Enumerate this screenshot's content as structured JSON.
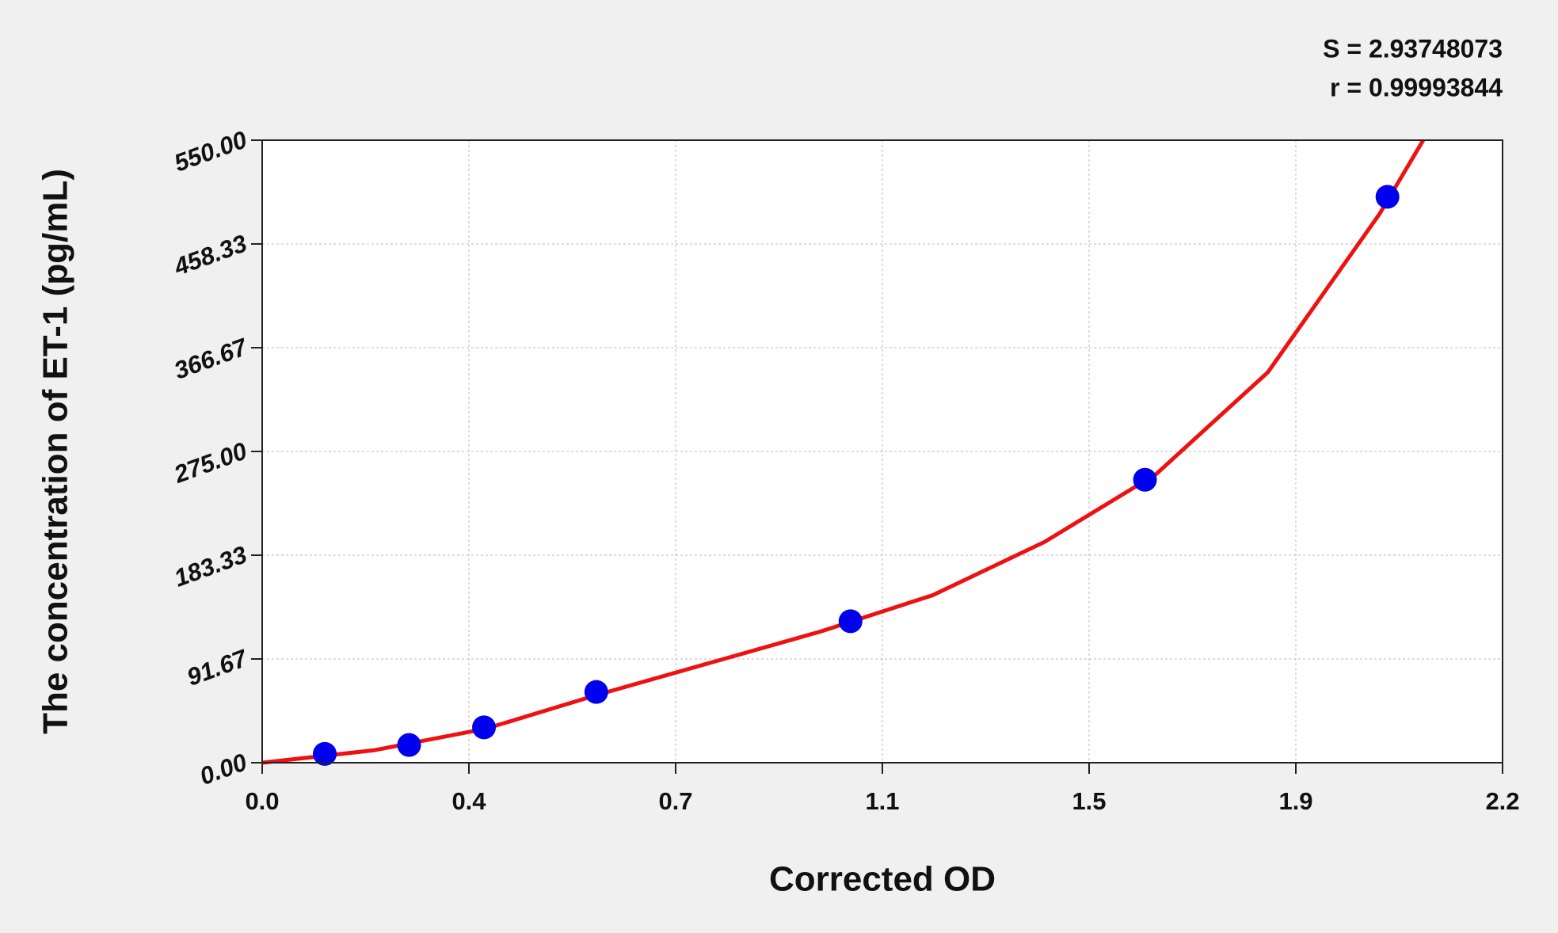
{
  "chart_data": {
    "type": "scatter",
    "x_label": "Corrected OD",
    "y_label": "The concentration of ET-1 (pg/mL)",
    "annotations": [
      "S = 2.93748073",
      "r = 0.99993844"
    ],
    "xlim": [
      0,
      2.22
    ],
    "xticks": [
      {
        "value": 0,
        "label": "0.0"
      },
      {
        "value": 0.37,
        "label": "0.4"
      },
      {
        "value": 0.74,
        "label": "0.7"
      },
      {
        "value": 1.11,
        "label": "1.1"
      },
      {
        "value": 1.48,
        "label": "1.5"
      },
      {
        "value": 1.85,
        "label": "1.9"
      },
      {
        "value": 2.22,
        "label": "2.2"
      }
    ],
    "ylim": [
      0,
      550
    ],
    "yticks": [
      {
        "value": 0,
        "label": "0.00"
      },
      {
        "value": 91.67,
        "label": "91.67"
      },
      {
        "value": 183.33,
        "label": "183.33"
      },
      {
        "value": 275,
        "label": "275.00"
      },
      {
        "value": 366.67,
        "label": "366.67"
      },
      {
        "value": 458.33,
        "label": "458.33"
      },
      {
        "value": 550,
        "label": "550.00"
      }
    ],
    "grid": true,
    "series": [
      {
        "type": "scatter",
        "color": "#0000ee",
        "x": [
          0.112,
          0.263,
          0.397,
          0.598,
          1.053,
          1.58,
          2.014
        ],
        "values": [
          7.81,
          15.63,
          31.25,
          62.5,
          125,
          250,
          500
        ]
      },
      {
        "type": "line",
        "color": "#ee1111",
        "x": [
          0,
          0.2,
          0.4,
          0.6,
          0.8,
          1.0,
          1.2,
          1.4,
          1.6,
          1.8,
          2.0,
          2.078
        ],
        "values": [
          0,
          11,
          30,
          60,
          88,
          116,
          148,
          195,
          255,
          345,
          485,
          550
        ]
      }
    ]
  }
}
